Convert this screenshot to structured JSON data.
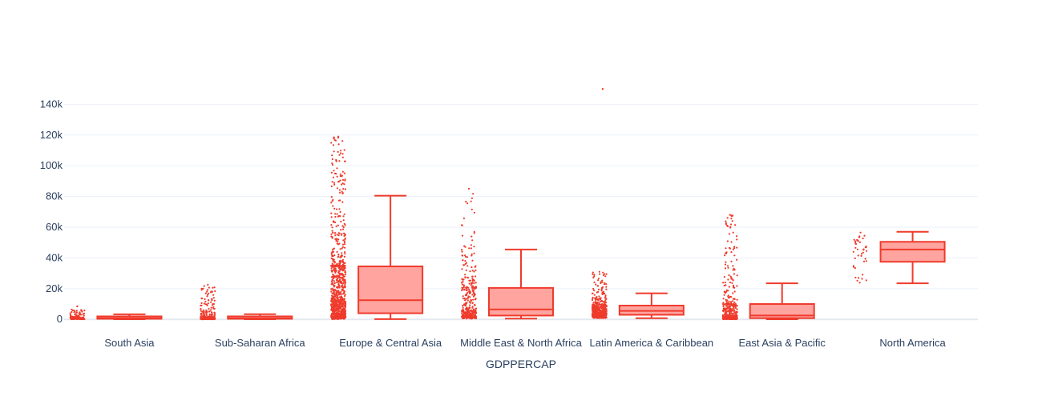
{
  "chart_data": {
    "type": "box",
    "title": "",
    "xlabel": "GDPPERCAP",
    "ylabel": "",
    "ylim": [
      -3000,
      148000
    ],
    "yticks": [
      0,
      20000,
      40000,
      60000,
      80000,
      100000,
      120000,
      140000
    ],
    "ytick_labels": [
      "0",
      "20k",
      "40k",
      "60k",
      "80k",
      "100k",
      "120k",
      "140k"
    ],
    "grid": true,
    "color": "#ef3b2c",
    "fill_color": "#ffa49f",
    "categories": [
      "South Asia",
      "Sub-Saharan Africa",
      "Europe & Central Asia",
      "Middle East & North Africa",
      "Latin America & Caribbean",
      "East Asia & Pacific",
      "North America"
    ],
    "boxes": [
      {
        "category": "South Asia",
        "min": 100,
        "q1": 400,
        "median": 800,
        "q3": 1700,
        "max": 3300,
        "point_max": 8500,
        "n_points": 140
      },
      {
        "category": "Sub-Saharan Africa",
        "min": 100,
        "q1": 400,
        "median": 700,
        "q3": 1600,
        "max": 3400,
        "point_max": 22500,
        "n_points": 420
      },
      {
        "category": "Europe & Central Asia",
        "min": 200,
        "q1": 4000,
        "median": 12500,
        "q3": 34500,
        "max": 80500,
        "point_max": 119000,
        "n_points": 900
      },
      {
        "category": "Middle East & North Africa",
        "min": 500,
        "q1": 2500,
        "median": 6500,
        "q3": 20500,
        "max": 45500,
        "point_max": 85000,
        "n_points": 380
      },
      {
        "category": "Latin America & Caribbean",
        "min": 800,
        "q1": 3000,
        "median": 5500,
        "q3": 9000,
        "max": 17000,
        "point_max": 31000,
        "n_points": 520,
        "outlier": 150000
      },
      {
        "category": "East Asia & Pacific",
        "min": 100,
        "q1": 800,
        "median": 2500,
        "q3": 10000,
        "max": 23500,
        "point_max": 68000,
        "n_points": 460
      },
      {
        "category": "North America",
        "min": 23500,
        "q1": 37500,
        "median": 45500,
        "q3": 50500,
        "max": 57000,
        "point_max": 56500,
        "point_min": 23500,
        "n_points": 40
      }
    ]
  }
}
